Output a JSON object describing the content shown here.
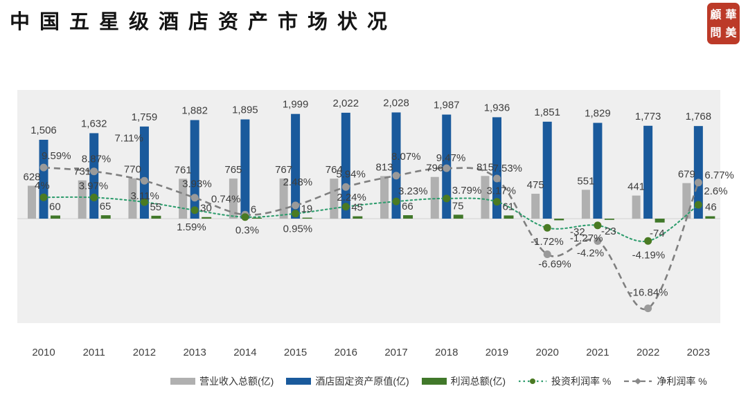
{
  "header": {
    "title": "中国五星级酒店资产市场状况"
  },
  "logo": {
    "seal_chars": [
      "顧",
      "華",
      "問",
      "美"
    ],
    "color": "#bc3a28"
  },
  "chart_data": {
    "type": "combo-bar-line",
    "title": "中国五星级酒店资产市场状况",
    "categories": [
      "2010",
      "2011",
      "2012",
      "2013",
      "2014",
      "2015",
      "2016",
      "2017",
      "2018",
      "2019",
      "2020",
      "2021",
      "2022",
      "2023"
    ],
    "series": [
      {
        "id": "revenue",
        "name": "营业收入总额(亿)",
        "type": "bar",
        "color": "#b0b0b0",
        "values": [
          628,
          731,
          770,
          761,
          765,
          767,
          764,
          813,
          796,
          815,
          475,
          551,
          441,
          679
        ],
        "labels": [
          "628",
          "731",
          "770",
          "761",
          "765",
          "767",
          "764",
          "813",
          "796",
          "815",
          "475",
          "551",
          "441",
          "679"
        ]
      },
      {
        "id": "fixed-assets",
        "name": "酒店固定资产原值(亿)",
        "type": "bar",
        "color": "#1a5a9c",
        "values": [
          1506,
          1632,
          1759,
          1882,
          1895,
          1999,
          2022,
          2028,
          1987,
          1936,
          1851,
          1829,
          1773,
          1768
        ],
        "labels": [
          "1,506",
          "1,632",
          "1,759",
          "1,882",
          "1,895",
          "1,999",
          "2,022",
          "2,028",
          "1,987",
          "1,936",
          "1,851",
          "1,829",
          "1,773",
          "1,768"
        ]
      },
      {
        "id": "profit",
        "name": "利润总额(亿)",
        "type": "bar",
        "color": "#41782a",
        "values": [
          60,
          65,
          55,
          30,
          6,
          19,
          45,
          66,
          75,
          61,
          -32,
          -23,
          -74,
          46
        ],
        "labels": [
          "60",
          "65",
          "55",
          "30",
          "6",
          "19",
          "45",
          "66",
          "75",
          "61",
          "-32",
          "-23",
          "-74",
          "46"
        ]
      },
      {
        "id": "investment-rate",
        "name": "投资利润率 %",
        "type": "line",
        "line_style": "dotted",
        "color": "#2f9d6e",
        "marker_color": "#4a7a23",
        "values": [
          4,
          3.97,
          3.11,
          1.59,
          0.3,
          0.95,
          2.24,
          3.23,
          3.79,
          3.17,
          -1.72,
          -1.27,
          -4.19,
          2.6
        ],
        "labels": [
          "4%",
          "3.97%",
          "3.11%",
          "1.59%",
          "0.3%",
          "0.95%",
          "2.24%",
          "3.23%",
          "3.79%",
          "3.17%",
          "-1.72%",
          "-1.27%",
          "-4.19%",
          "2.6%"
        ]
      },
      {
        "id": "net-margin",
        "name": "净利润率 %",
        "type": "line",
        "line_style": "dashed",
        "color": "#7f7f7f",
        "marker_color": "#9a9a9a",
        "values": [
          9.59,
          8.87,
          7.11,
          3.93,
          0.74,
          2.48,
          5.94,
          8.07,
          9.47,
          7.53,
          -6.69,
          -4.2,
          -16.84,
          6.77
        ],
        "labels": [
          "9.59%",
          "8.87%",
          "7.11%",
          "3.93%",
          "0.74%",
          "2.48%",
          "5.94%",
          "8.07%",
          "9.47%",
          "7.53%",
          "-6.69%",
          "-4.2%",
          "-16.84%",
          "6.77%"
        ]
      }
    ],
    "axes": {
      "y_value_axis_visible": false,
      "y_percent_axis_visible": false,
      "x_axis_labels_visible": true,
      "grid": false
    },
    "legend_position": "bottom",
    "plot_background": "#efefef"
  }
}
